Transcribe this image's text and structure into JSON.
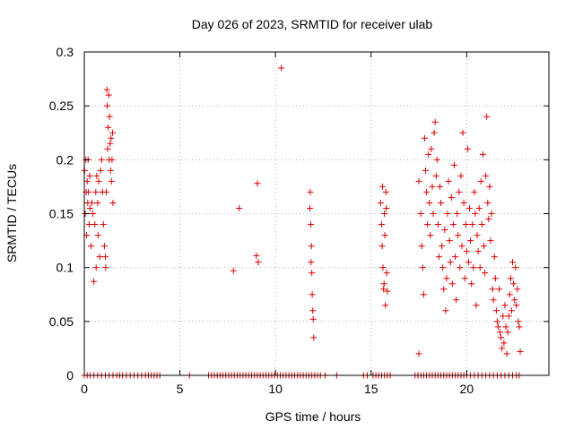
{
  "colors": {
    "series": "#e00000",
    "grid": "#a0a0a0",
    "axis": "#000000"
  },
  "chart_data": {
    "type": "scatter",
    "title": "Day 026 of 2023, SRMTID for receiver ulab",
    "xlabel": "GPS time / hours",
    "ylabel": "SRMTID / TECUs",
    "xlim": [
      0,
      24.3
    ],
    "ylim": [
      0,
      0.3
    ],
    "grid": true,
    "x_ticks": [
      0,
      5,
      10,
      15,
      20
    ],
    "x_tick_labels": [
      "0",
      "5",
      "10",
      "15",
      "20"
    ],
    "y_ticks": [
      0,
      0.05,
      0.1,
      0.15,
      0.2,
      0.25,
      0.3
    ],
    "y_tick_labels": [
      "0",
      "0.05",
      "0.1",
      "0.15",
      "0.2",
      "0.25",
      "0.3"
    ],
    "marker": "plus",
    "series": [
      {
        "name": "SRMTID",
        "points": [
          [
            0.02,
            0.19
          ],
          [
            0.05,
            0.15
          ],
          [
            0.08,
            0.2
          ],
          [
            0.1,
            0.17
          ],
          [
            0.12,
            0.13
          ],
          [
            0.15,
            0.18
          ],
          [
            0.18,
            0.16
          ],
          [
            0.2,
            0.2
          ],
          [
            0.22,
            0.17
          ],
          [
            0.25,
            0.14
          ],
          [
            0.28,
            0.185
          ],
          [
            0.3,
            0.155
          ],
          [
            0.35,
            0.12
          ],
          [
            0.4,
            0.16
          ],
          [
            0.45,
            0.15
          ],
          [
            0.5,
            0.087
          ],
          [
            0.55,
            0.14
          ],
          [
            0.6,
            0.17
          ],
          [
            0.62,
            0.1
          ],
          [
            0.65,
            0.185
          ],
          [
            0.7,
            0.16
          ],
          [
            0.72,
            0.13
          ],
          [
            0.75,
            0.18
          ],
          [
            0.8,
            0.11
          ],
          [
            0.85,
            0.19
          ],
          [
            0.9,
            0.2
          ],
          [
            0.95,
            0.17
          ],
          [
            1.0,
            0.14
          ],
          [
            1.05,
            0.12
          ],
          [
            1.1,
            0.11
          ],
          [
            1.12,
            0.1
          ],
          [
            1.15,
            0.17
          ],
          [
            1.18,
            0.265
          ],
          [
            1.2,
            0.25
          ],
          [
            1.22,
            0.21
          ],
          [
            1.25,
            0.23
          ],
          [
            1.28,
            0.26
          ],
          [
            1.3,
            0.2
          ],
          [
            1.32,
            0.24
          ],
          [
            1.35,
            0.215
          ],
          [
            1.38,
            0.19
          ],
          [
            1.4,
            0.22
          ],
          [
            1.42,
            0.18
          ],
          [
            1.45,
            0.2
          ],
          [
            1.48,
            0.225
          ],
          [
            1.5,
            0.16
          ],
          [
            7.8,
            0.097
          ],
          [
            8.1,
            0.155
          ],
          [
            9.0,
            0.111
          ],
          [
            9.05,
            0.178
          ],
          [
            9.1,
            0.105
          ],
          [
            10.3,
            0.285
          ],
          [
            11.8,
            0.155
          ],
          [
            11.82,
            0.17
          ],
          [
            11.85,
            0.14
          ],
          [
            11.88,
            0.12
          ],
          [
            11.9,
            0.095
          ],
          [
            11.92,
            0.075
          ],
          [
            11.95,
            0.06
          ],
          [
            11.97,
            0.052
          ],
          [
            12.0,
            0.035
          ],
          [
            11.86,
            0.105
          ],
          [
            15.5,
            0.16
          ],
          [
            15.55,
            0.14
          ],
          [
            15.58,
            0.12
          ],
          [
            15.6,
            0.175
          ],
          [
            15.62,
            0.1
          ],
          [
            15.65,
            0.08
          ],
          [
            15.68,
            0.085
          ],
          [
            15.7,
            0.15
          ],
          [
            15.72,
            0.13
          ],
          [
            15.75,
            0.065
          ],
          [
            15.78,
            0.17
          ],
          [
            15.8,
            0.155
          ],
          [
            15.82,
            0.095
          ],
          [
            15.85,
            0.078
          ],
          [
            17.5,
            0.02
          ],
          [
            17.5,
            0.18
          ],
          [
            17.6,
            0.15
          ],
          [
            17.65,
            0.12
          ],
          [
            17.7,
            0.1
          ],
          [
            17.75,
            0.075
          ],
          [
            17.8,
            0.22
          ],
          [
            17.85,
            0.19
          ],
          [
            17.9,
            0.17
          ],
          [
            17.95,
            0.14
          ],
          [
            18.0,
            0.205
          ],
          [
            18.05,
            0.16
          ],
          [
            18.1,
            0.13
          ],
          [
            18.15,
            0.21
          ],
          [
            18.2,
            0.175
          ],
          [
            18.25,
            0.15
          ],
          [
            18.3,
            0.225
          ],
          [
            18.35,
            0.235
          ],
          [
            18.4,
            0.185
          ],
          [
            18.45,
            0.2
          ],
          [
            18.5,
            0.14
          ],
          [
            18.55,
            0.11
          ],
          [
            18.6,
            0.175
          ],
          [
            18.65,
            0.16
          ],
          [
            18.7,
            0.12
          ],
          [
            18.75,
            0.1
          ],
          [
            18.8,
            0.08
          ],
          [
            18.85,
            0.135
          ],
          [
            18.9,
            0.06
          ],
          [
            18.95,
            0.09
          ],
          [
            19.0,
            0.15
          ],
          [
            19.05,
            0.18
          ],
          [
            19.1,
            0.125
          ],
          [
            19.15,
            0.105
          ],
          [
            19.2,
            0.165
          ],
          [
            19.25,
            0.085
          ],
          [
            19.3,
            0.14
          ],
          [
            19.35,
            0.195
          ],
          [
            19.4,
            0.11
          ],
          [
            19.45,
            0.07
          ],
          [
            19.5,
            0.15
          ],
          [
            19.55,
            0.13
          ],
          [
            19.6,
            0.17
          ],
          [
            19.65,
            0.1
          ],
          [
            19.7,
            0.185
          ],
          [
            19.75,
            0.12
          ],
          [
            19.8,
            0.225
          ],
          [
            19.85,
            0.16
          ],
          [
            19.9,
            0.09
          ],
          [
            19.95,
            0.14
          ],
          [
            20.0,
            0.115
          ],
          [
            20.05,
            0.21
          ],
          [
            20.1,
            0.105
          ],
          [
            20.15,
            0.155
          ],
          [
            20.2,
            0.125
          ],
          [
            20.25,
            0.085
          ],
          [
            20.3,
            0.14
          ],
          [
            20.35,
            0.1
          ],
          [
            20.4,
            0.17
          ],
          [
            20.45,
            0.15
          ],
          [
            20.5,
            0.065
          ],
          [
            20.55,
            0.13
          ],
          [
            20.6,
            0.115
          ],
          [
            20.65,
            0.155
          ],
          [
            20.7,
            0.1
          ],
          [
            20.75,
            0.18
          ],
          [
            20.8,
            0.14
          ],
          [
            20.85,
            0.205
          ],
          [
            20.9,
            0.12
          ],
          [
            20.95,
            0.095
          ],
          [
            21.0,
            0.185
          ],
          [
            21.05,
            0.24
          ],
          [
            21.1,
            0.16
          ],
          [
            21.15,
            0.145
          ],
          [
            21.2,
            0.175
          ],
          [
            21.25,
            0.125
          ],
          [
            21.3,
            0.15
          ],
          [
            21.35,
            0.08
          ],
          [
            21.4,
            0.07
          ],
          [
            21.45,
            0.11
          ],
          [
            21.5,
            0.09
          ],
          [
            21.55,
            0.06
          ],
          [
            21.6,
            0.05
          ],
          [
            21.65,
            0.045
          ],
          [
            21.7,
            0.08
          ],
          [
            21.75,
            0.04
          ],
          [
            21.8,
            0.035
          ],
          [
            21.85,
            0.025
          ],
          [
            21.9,
            0.055
          ],
          [
            21.95,
            0.03
          ],
          [
            22.0,
            0.065
          ],
          [
            22.05,
            0.045
          ],
          [
            22.1,
            0.02
          ],
          [
            22.15,
            0.04
          ],
          [
            22.2,
            0.055
          ],
          [
            22.25,
            0.075
          ],
          [
            22.3,
            0.09
          ],
          [
            22.35,
            0.06
          ],
          [
            22.4,
            0.105
          ],
          [
            22.45,
            0.085
          ],
          [
            22.5,
            0.07
          ],
          [
            22.55,
            0.1
          ],
          [
            22.6,
            0.065
          ],
          [
            22.65,
            0.08
          ],
          [
            22.7,
            0.05
          ],
          [
            22.75,
            0.045
          ],
          [
            22.8,
            0.022
          ]
        ],
        "zero_points": [
          0.0,
          0.15,
          0.3,
          0.5,
          0.7,
          0.9,
          1.1,
          1.3,
          1.5,
          1.7,
          1.85,
          2.0,
          2.2,
          2.4,
          2.6,
          2.8,
          3.0,
          3.2,
          3.35,
          3.5,
          3.65,
          3.8,
          3.95,
          5.5,
          6.5,
          6.65,
          6.8,
          6.95,
          7.1,
          7.25,
          7.4,
          7.55,
          7.7,
          7.85,
          8.0,
          8.15,
          8.3,
          8.45,
          8.6,
          8.75,
          8.9,
          9.05,
          9.2,
          9.35,
          9.5,
          9.65,
          9.8,
          9.95,
          10.1,
          10.25,
          10.4,
          10.55,
          10.7,
          10.85,
          11.0,
          11.15,
          11.3,
          11.45,
          11.6,
          11.75,
          11.9,
          12.05,
          12.2,
          12.35,
          12.6,
          13.2,
          14.6,
          14.8,
          15.1,
          15.25,
          15.4,
          15.55,
          15.7,
          15.85,
          16.0,
          17.3,
          17.45,
          17.6,
          17.75,
          17.9,
          18.05,
          18.2,
          18.35,
          18.5,
          18.65,
          18.8,
          18.95,
          19.1,
          19.25,
          19.4,
          19.55,
          19.7,
          19.85,
          20.0,
          20.2,
          20.4,
          20.6,
          20.8,
          21.0,
          21.2,
          21.4,
          21.6,
          21.8,
          22.0,
          22.2,
          22.4,
          22.6,
          22.75
        ]
      }
    ]
  }
}
